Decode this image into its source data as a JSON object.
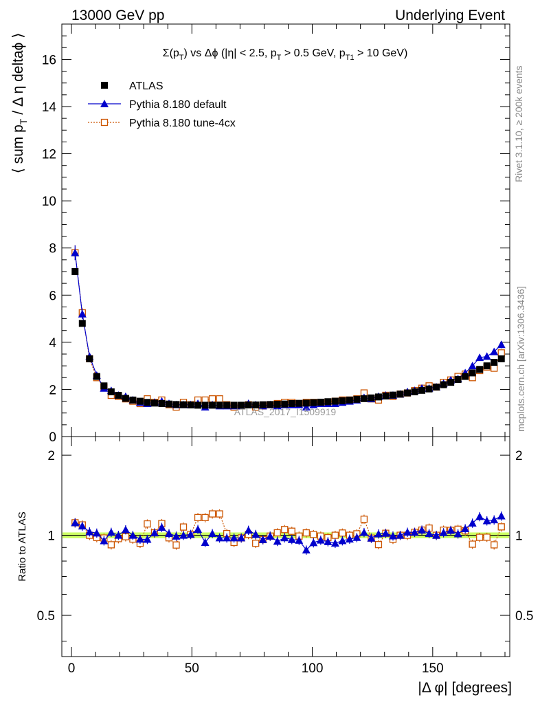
{
  "header": {
    "left": "13000 GeV pp",
    "right": "Underlying Event"
  },
  "side_texts": {
    "rivet": "Rivet 3.1.10, ≥ 200k events",
    "mcplots": "mcplots.cern.ch [arXiv:1306.3436]"
  },
  "watermark": "ATLAS_2017_I1509919",
  "chart_data": {
    "type": "scatter",
    "title": "Σ(p_T) vs Δφ (|η| < 2.5, p_T > 0.5 GeV, p_T1 > 10 GeV)",
    "ylabel": "⟨ sum p_T / Δ η deltaϕ ⟩",
    "xlabel": "|Δ φ| [degrees]",
    "ratio_ylabel": "Ratio to ATLAS",
    "xlim": [
      -4,
      182
    ],
    "ylim": [
      0,
      17.5
    ],
    "ratio_ylim": [
      0.35,
      2.35
    ],
    "ratio_log": true,
    "x_ticks": [
      0,
      50,
      100,
      150
    ],
    "y_ticks": [
      0,
      2,
      4,
      6,
      8,
      10,
      12,
      14,
      16
    ],
    "ratio_ticks": [
      0.5,
      1,
      2
    ],
    "legend_position": "top-left",
    "x": [
      1.5,
      4.5,
      7.5,
      10.5,
      13.5,
      16.5,
      19.5,
      22.5,
      25.5,
      28.5,
      31.5,
      34.5,
      37.5,
      40.5,
      43.5,
      46.5,
      49.5,
      52.5,
      55.5,
      58.5,
      61.5,
      64.5,
      67.5,
      70.5,
      73.5,
      76.5,
      79.5,
      82.5,
      85.5,
      88.5,
      91.5,
      94.5,
      97.5,
      100.5,
      103.5,
      106.5,
      109.5,
      112.5,
      115.5,
      118.5,
      121.5,
      124.5,
      127.5,
      130.5,
      133.5,
      136.5,
      139.5,
      142.5,
      145.5,
      148.5,
      151.5,
      154.5,
      157.5,
      160.5,
      163.5,
      166.5,
      169.5,
      172.5,
      175.5,
      178.5
    ],
    "series": [
      {
        "name": "ATLAS",
        "color": "#000000",
        "marker": "filled-square",
        "values": [
          7.0,
          4.8,
          3.3,
          2.55,
          2.15,
          1.9,
          1.75,
          1.62,
          1.55,
          1.5,
          1.45,
          1.42,
          1.4,
          1.38,
          1.36,
          1.35,
          1.34,
          1.33,
          1.33,
          1.33,
          1.33,
          1.33,
          1.33,
          1.33,
          1.34,
          1.34,
          1.35,
          1.36,
          1.37,
          1.38,
          1.4,
          1.41,
          1.42,
          1.44,
          1.46,
          1.48,
          1.5,
          1.52,
          1.55,
          1.58,
          1.61,
          1.64,
          1.68,
          1.72,
          1.76,
          1.8,
          1.85,
          1.9,
          1.96,
          2.02,
          2.1,
          2.2,
          2.3,
          2.42,
          2.55,
          2.7,
          2.85,
          3.0,
          3.15,
          3.3
        ]
      },
      {
        "name": "Pythia 8.180 default",
        "color": "#0000cc",
        "marker": "filled-triangle",
        "values": [
          7.8,
          5.2,
          3.4,
          2.6,
          2.05,
          1.95,
          1.75,
          1.7,
          1.55,
          1.45,
          1.4,
          1.45,
          1.5,
          1.4,
          1.35,
          1.35,
          1.35,
          1.4,
          1.25,
          1.35,
          1.3,
          1.3,
          1.3,
          1.3,
          1.4,
          1.35,
          1.3,
          1.35,
          1.3,
          1.35,
          1.35,
          1.35,
          1.25,
          1.35,
          1.4,
          1.4,
          1.4,
          1.45,
          1.5,
          1.55,
          1.65,
          1.6,
          1.7,
          1.75,
          1.75,
          1.8,
          1.9,
          1.95,
          2.05,
          2.05,
          2.1,
          2.25,
          2.4,
          2.45,
          2.7,
          3.0,
          3.35,
          3.4,
          3.6,
          3.9
        ]
      },
      {
        "name": "Pythia 8.180 tune-4cx",
        "color": "#cc5500",
        "marker": "open-square",
        "values": [
          7.8,
          5.25,
          3.3,
          2.5,
          2.1,
          1.75,
          1.7,
          1.6,
          1.5,
          1.4,
          1.6,
          1.45,
          1.55,
          1.35,
          1.25,
          1.45,
          1.35,
          1.55,
          1.55,
          1.6,
          1.6,
          1.35,
          1.25,
          1.3,
          1.35,
          1.25,
          1.3,
          1.35,
          1.4,
          1.45,
          1.45,
          1.4,
          1.45,
          1.45,
          1.45,
          1.45,
          1.5,
          1.55,
          1.55,
          1.6,
          1.85,
          1.6,
          1.55,
          1.75,
          1.7,
          1.8,
          1.85,
          1.95,
          2.05,
          2.15,
          2.1,
          2.3,
          2.4,
          2.55,
          2.65,
          2.5,
          2.8,
          2.95,
          2.9,
          3.55
        ]
      }
    ],
    "ratio_band_color": "#ccff66"
  }
}
